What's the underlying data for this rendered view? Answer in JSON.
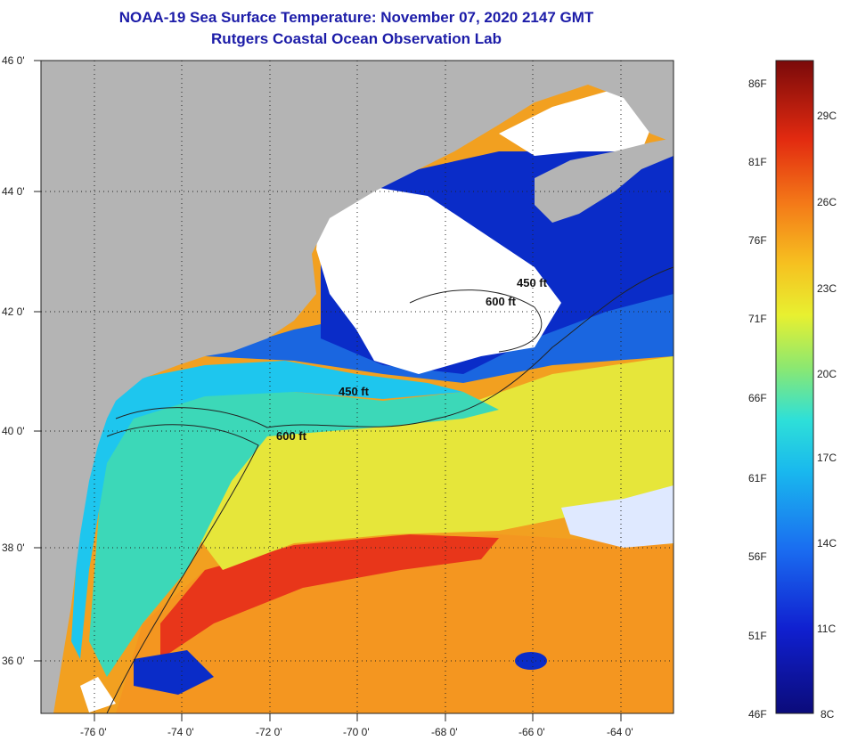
{
  "title": "NOAA-19 Sea Surface Temperature:  November 07, 2020 2147 GMT",
  "subtitle": "Rutgers Coastal Ocean Observation Lab",
  "axes": {
    "x_ticks": [
      "-76 0'",
      "-74 0'",
      "-72 0'",
      "-70 0'",
      "-68 0'",
      "-66 0'",
      "-64 0'"
    ],
    "y_ticks": [
      "46 0'",
      "44 0'",
      "42 0'",
      "40 0'",
      "38 0'",
      "36 0'"
    ]
  },
  "contours": [
    {
      "label": "600 ft"
    },
    {
      "label": "450 ft"
    },
    {
      "label": "600 ft"
    },
    {
      "label": "450 ft"
    }
  ],
  "colorbar": {
    "fahrenheit": [
      "86F",
      "81F",
      "76F",
      "71F",
      "66F",
      "61F",
      "56F",
      "51F",
      "46F"
    ],
    "celsius": [
      "29C",
      "26C",
      "23C",
      "20C",
      "17C",
      "14C",
      "11C",
      "8C"
    ]
  },
  "colors": {
    "land": "#b4b4b4",
    "cloud": "#ffffff",
    "title": "#1c1ca8"
  }
}
